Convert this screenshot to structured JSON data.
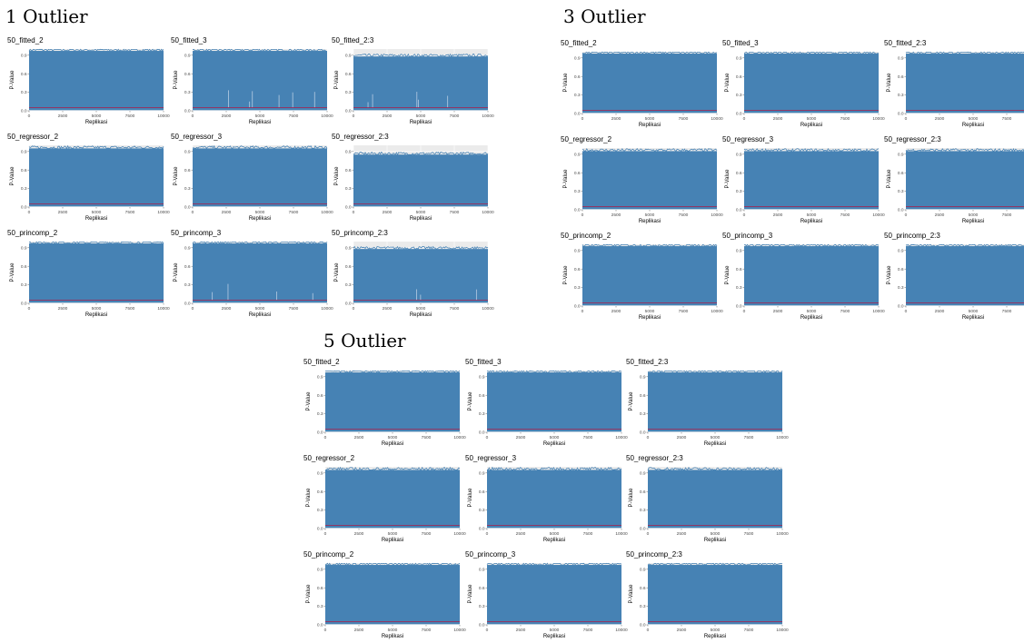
{
  "figure": {
    "groups": [
      {
        "title": "1 Outlier",
        "panels": [
          {
            "title": "50_fitted_2",
            "upper": 0.97,
            "spikes": 0
          },
          {
            "title": "50_fitted_3",
            "upper": 0.97,
            "spikes": 6
          },
          {
            "title": "50_fitted_2:3",
            "upper": 0.88,
            "spikes": 5
          },
          {
            "title": "50_regressor_2",
            "upper": 0.95,
            "spikes": 0
          },
          {
            "title": "50_regressor_3",
            "upper": 0.95,
            "spikes": 0
          },
          {
            "title": "50_regressor_2:3",
            "upper": 0.85,
            "spikes": 0
          },
          {
            "title": "50_princomp_2",
            "upper": 0.97,
            "spikes": 0
          },
          {
            "title": "50_princomp_3",
            "upper": 0.97,
            "spikes": 4
          },
          {
            "title": "50_princomp_2:3",
            "upper": 0.88,
            "spikes": 3
          }
        ]
      },
      {
        "title": "3 Outlier",
        "panels": [
          {
            "title": "50_fitted_2",
            "upper": 0.97,
            "spikes": 0
          },
          {
            "title": "50_fitted_3",
            "upper": 0.97,
            "spikes": 0
          },
          {
            "title": "50_fitted_2:3",
            "upper": 0.97,
            "spikes": 0
          },
          {
            "title": "50_regressor_2",
            "upper": 0.95,
            "spikes": 0
          },
          {
            "title": "50_regressor_3",
            "upper": 0.95,
            "spikes": 0
          },
          {
            "title": "50_regressor_2:3",
            "upper": 0.95,
            "spikes": 0
          },
          {
            "title": "50_princomp_2",
            "upper": 0.97,
            "spikes": 0
          },
          {
            "title": "50_princomp_3",
            "upper": 0.97,
            "spikes": 0
          },
          {
            "title": "50_princomp_2:3",
            "upper": 0.97,
            "spikes": 0
          }
        ]
      },
      {
        "title": "5 Outlier",
        "panels": [
          {
            "title": "50_fitted_2",
            "upper": 0.97,
            "spikes": 0
          },
          {
            "title": "50_fitted_3",
            "upper": 0.97,
            "spikes": 0
          },
          {
            "title": "50_fitted_2:3",
            "upper": 0.97,
            "spikes": 0
          },
          {
            "title": "50_regressor_2",
            "upper": 0.95,
            "spikes": 0
          },
          {
            "title": "50_regressor_3",
            "upper": 0.95,
            "spikes": 0
          },
          {
            "title": "50_regressor_2:3",
            "upper": 0.95,
            "spikes": 0
          },
          {
            "title": "50_princomp_2",
            "upper": 0.97,
            "spikes": 0
          },
          {
            "title": "50_princomp_3",
            "upper": 0.97,
            "spikes": 0
          },
          {
            "title": "50_princomp_2:3",
            "upper": 0.97,
            "spikes": 0
          }
        ]
      }
    ]
  },
  "chart_data": {
    "type": "line",
    "description_axes": {
      "xlabel": "Replikasi",
      "ylabel": "P-Value",
      "xlim": [
        0,
        10000
      ],
      "ylim": [
        0,
        1
      ],
      "xticks": [
        0,
        2500,
        5000,
        7500,
        10000
      ],
      "yticks": [
        0.0,
        0.3,
        0.6,
        0.9
      ],
      "ytick_labels": [
        "0.0",
        "0.3",
        "0.6",
        "0.9"
      ],
      "grid": true
    },
    "reference_line": {
      "y": 0.05
    },
    "colors": {
      "series": "#4682b4",
      "reference": "#9b2c5a",
      "panel_bg": "#ebebeb",
      "grid": "#ffffff"
    }
  }
}
